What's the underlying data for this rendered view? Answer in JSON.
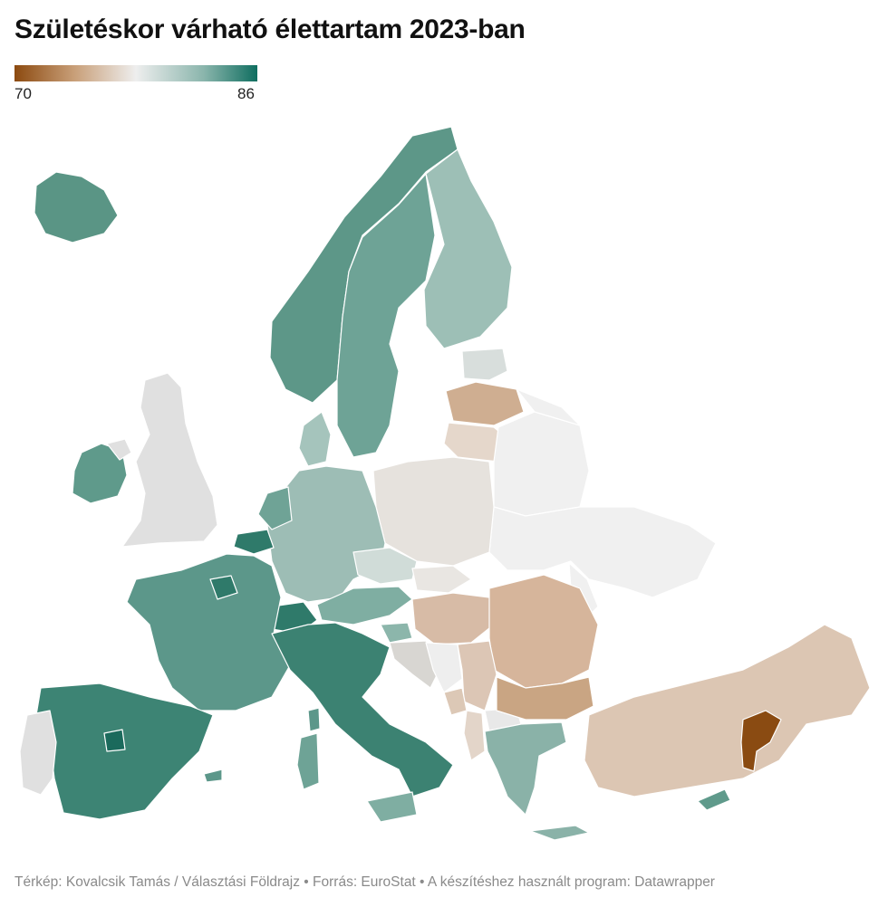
{
  "title": "Születéskor várható élettartam 2023-ban",
  "legend": {
    "min_label": "70",
    "max_label": "86",
    "min_value": 70,
    "max_value": 86
  },
  "colors": {
    "low": "#8c4a10",
    "mid": "#eeeeee",
    "high": "#0f6e60",
    "no_data": "#e0e0e0",
    "background": "#ffffff"
  },
  "footer": "Térkép: Kovalcsik Tamás / Választási Földrajz • Forrás: EuroStat • A készítéshez használt program: Datawrapper"
}
